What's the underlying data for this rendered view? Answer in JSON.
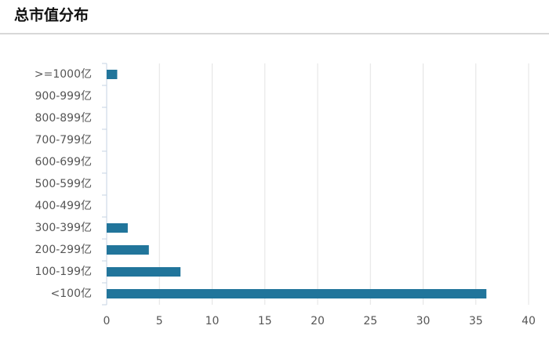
{
  "chart_data": {
    "type": "hbar",
    "title": "总市值分布",
    "categories": [
      ">=1000亿",
      "900-999亿",
      "800-899亿",
      "700-799亿",
      "600-699亿",
      "500-599亿",
      "400-499亿",
      "300-399亿",
      "200-299亿",
      "100-199亿",
      "<100亿"
    ],
    "values": [
      1,
      0,
      0,
      0,
      0,
      0,
      0,
      2,
      4,
      7,
      36
    ],
    "color": "#21759b",
    "xlim": [
      0,
      40
    ],
    "xticks": [
      0,
      5,
      10,
      15,
      20,
      25,
      30,
      35,
      40
    ],
    "grid": true
  }
}
